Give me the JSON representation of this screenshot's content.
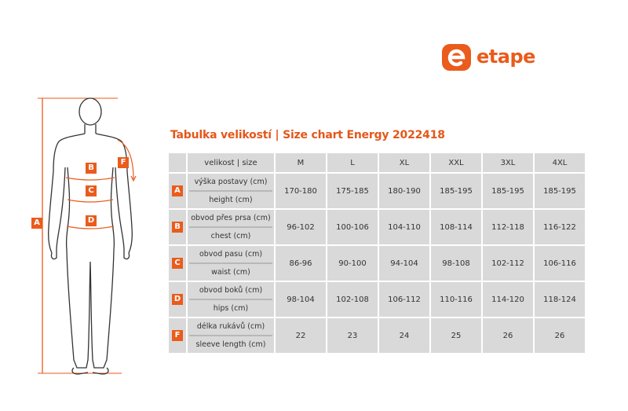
{
  "brand": {
    "name": "etape",
    "color": "#ea5b1c"
  },
  "title": "Tabulka velikostí | Size chart  Energy 2022418",
  "figure_markers": [
    "A",
    "B",
    "C",
    "D",
    "F"
  ],
  "table": {
    "header_label": "velikost | size",
    "sizes": [
      "M",
      "L",
      "XL",
      "XXL",
      "3XL",
      "4XL"
    ],
    "rows": [
      {
        "marker": "A",
        "label_cz": "výška postavy (cm)",
        "label_en": "height (cm)",
        "values": [
          "170-180",
          "175-185",
          "180-190",
          "185-195",
          "185-195",
          "185-195"
        ]
      },
      {
        "marker": "B",
        "label_cz": "obvod přes prsa (cm)",
        "label_en": "chest (cm)",
        "values": [
          "96-102",
          "100-106",
          "104-110",
          "108-114",
          "112-118",
          "116-122"
        ]
      },
      {
        "marker": "C",
        "label_cz": "obvod pasu (cm)",
        "label_en": "waist (cm)",
        "values": [
          "86-96",
          "90-100",
          "94-104",
          "98-108",
          "102-112",
          "106-116"
        ]
      },
      {
        "marker": "D",
        "label_cz": "obvod boků (cm)",
        "label_en": "hips (cm)",
        "values": [
          "98-104",
          "102-108",
          "106-112",
          "110-116",
          "114-120",
          "118-124"
        ]
      },
      {
        "marker": "F",
        "label_cz": "délka rukávů (cm)",
        "label_en": "sleeve length (cm)",
        "values": [
          "22",
          "23",
          "24",
          "25",
          "26",
          "26"
        ]
      }
    ]
  }
}
